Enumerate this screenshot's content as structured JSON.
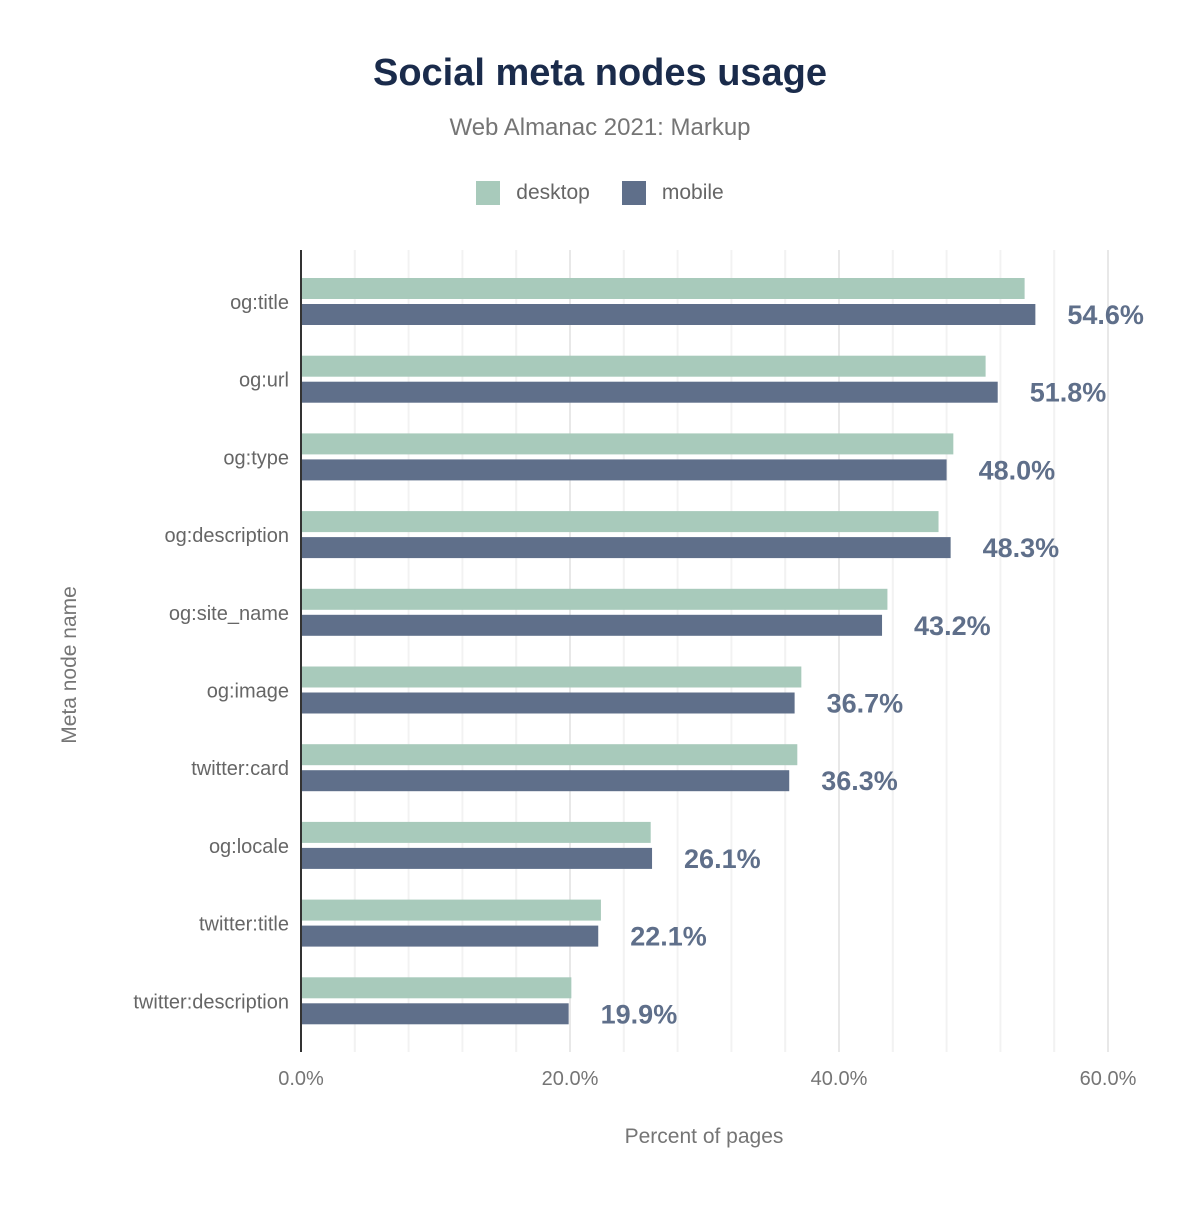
{
  "chart_data": {
    "type": "bar",
    "orientation": "horizontal",
    "title": "Social meta nodes usage",
    "subtitle": "Web Almanac 2021: Markup",
    "xlabel": "Percent of pages",
    "ylabel": "Meta node name",
    "xlim": [
      0,
      62
    ],
    "x_ticks": [
      "0.0%",
      "20.0%",
      "40.0%",
      "60.0%"
    ],
    "grid": true,
    "legend_position": "top",
    "categories": [
      "og:title",
      "og:url",
      "og:type",
      "og:description",
      "og:site_name",
      "og:image",
      "twitter:card",
      "og:locale",
      "twitter:title",
      "twitter:description"
    ],
    "series": [
      {
        "name": "desktop",
        "color": "#a8cabb",
        "values": [
          53.8,
          50.9,
          48.5,
          47.4,
          43.6,
          37.2,
          36.9,
          26.0,
          22.3,
          20.1
        ]
      },
      {
        "name": "mobile",
        "color": "#5f6f8a",
        "values": [
          54.6,
          51.8,
          48.0,
          48.3,
          43.2,
          36.7,
          36.3,
          26.1,
          22.1,
          19.9
        ]
      }
    ],
    "data_labels": [
      "54.6%",
      "51.8%",
      "48.0%",
      "48.3%",
      "43.2%",
      "36.7%",
      "36.3%",
      "26.1%",
      "22.1%",
      "19.9%"
    ]
  }
}
